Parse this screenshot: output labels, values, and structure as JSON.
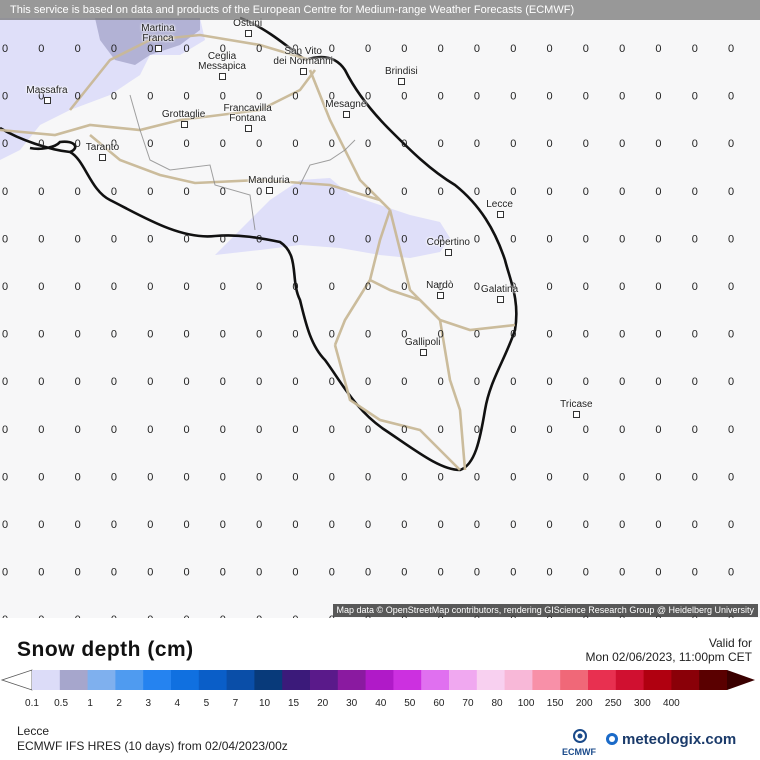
{
  "banner": "This service is based on data and products of the European Centre for Medium-range Weather Forecasts (ECMWF)",
  "attribution": "Map data © OpenStreetMap contributors, rendering GIScience Research Group @ Heidelberg University",
  "grid_value": "0",
  "cities": [
    {
      "name": "Martina\nFranca",
      "lon": 17.37,
      "lat": 40.7
    },
    {
      "name": "Ostuni",
      "lon": 17.58,
      "lat": 40.73
    },
    {
      "name": "Ceglia\nMessapica",
      "lon": 17.52,
      "lat": 40.64
    },
    {
      "name": "San Vito\ndei Normanni",
      "lon": 17.71,
      "lat": 40.65
    },
    {
      "name": "Brindisi",
      "lon": 17.94,
      "lat": 40.63
    },
    {
      "name": "Massafra",
      "lon": 17.11,
      "lat": 40.59
    },
    {
      "name": "Francavilla\nFontana",
      "lon": 17.58,
      "lat": 40.53
    },
    {
      "name": "Mesagne",
      "lon": 17.81,
      "lat": 40.56
    },
    {
      "name": "Grottaglie",
      "lon": 17.43,
      "lat": 40.54
    },
    {
      "name": "Taranto",
      "lon": 17.24,
      "lat": 40.47
    },
    {
      "name": "Manduria",
      "lon": 17.63,
      "lat": 40.4
    },
    {
      "name": "Lecce",
      "lon": 18.17,
      "lat": 40.35
    },
    {
      "name": "Copertino",
      "lon": 18.05,
      "lat": 40.27
    },
    {
      "name": "Nardò",
      "lon": 18.03,
      "lat": 40.18
    },
    {
      "name": "Galatina",
      "lon": 18.17,
      "lat": 40.17
    },
    {
      "name": "Gallipoli",
      "lon": 17.99,
      "lat": 40.06
    },
    {
      "name": "Tricase",
      "lon": 18.35,
      "lat": 39.93
    }
  ],
  "title": "Snow depth (cm)",
  "valid_label": "Valid for",
  "valid_date": "Mon 02/06/2023, 11:00pm CET",
  "legend": {
    "labels": [
      "0.1",
      "0.5",
      "1",
      "2",
      "3",
      "4",
      "5",
      "7",
      "10",
      "15",
      "20",
      "30",
      "40",
      "50",
      "60",
      "70",
      "80",
      "100",
      "150",
      "200",
      "250",
      "300",
      "400"
    ],
    "colors": [
      "#dcdcf8",
      "#a6a6cc",
      "#7fb0ee",
      "#4f9bf0",
      "#2583f0",
      "#1070e0",
      "#0a5ec8",
      "#0a4ea8",
      "#083a7a",
      "#3b1a7a",
      "#5a1a8a",
      "#8a1aa0",
      "#b01ac8",
      "#cc30e0",
      "#e070f0",
      "#f0a8f0",
      "#f8d0f0",
      "#f8b8d8",
      "#f890a8",
      "#f06878",
      "#e83050",
      "#d01030",
      "#b00010",
      "#8a0008",
      "#5a0000"
    ]
  },
  "location": "Lecce",
  "model": "ECMWF IFS HRES (10 days) from 02/04/2023/00z",
  "ecmwf_logo_text": "ECMWF",
  "brand": "meteologix.com"
}
